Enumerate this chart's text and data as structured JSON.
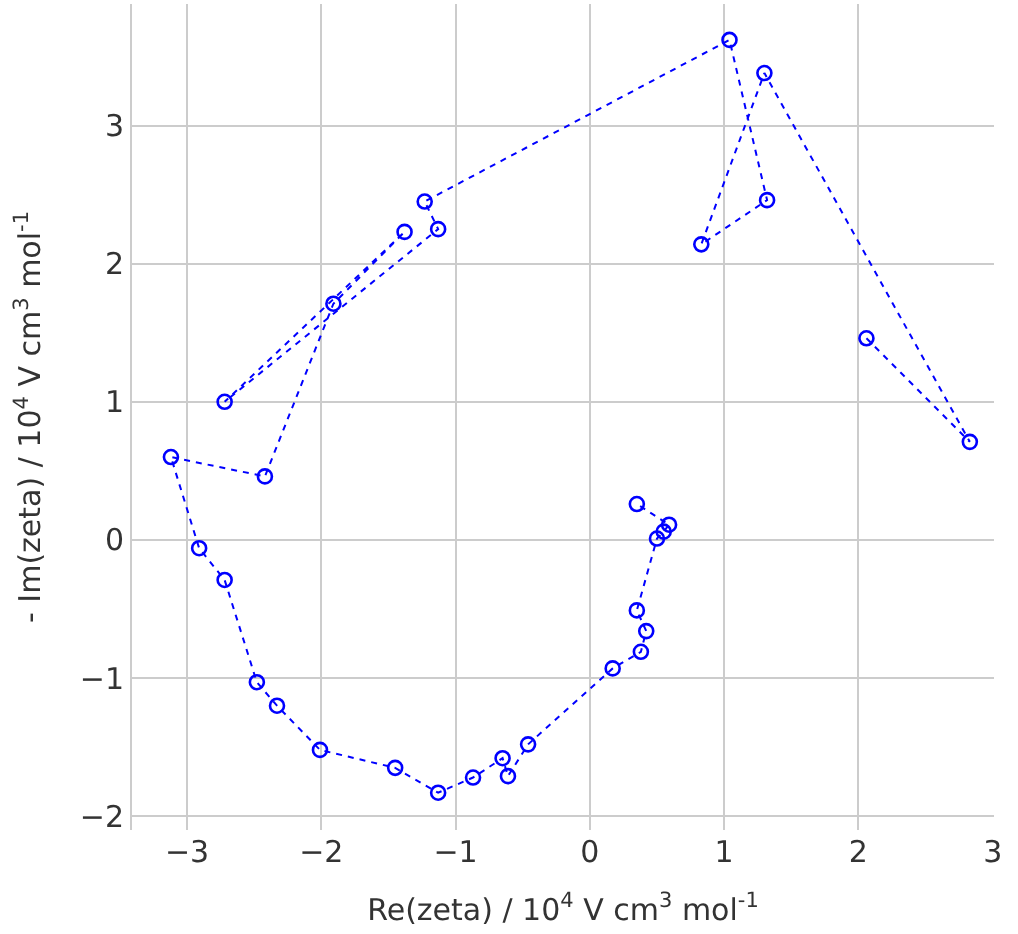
{
  "chart_data": {
    "type": "line",
    "xlabel": "Re(zeta) / 10$^{4}$ V cm$^{3}$ mol$^{-1}$",
    "ylabel": "- Im(zeta) / 10$^{4}$ V cm$^{3}$ mol$^{-1}$",
    "series": [
      {
        "color": "#0000ff",
        "x": [
          2.06,
          2.83,
          1.3,
          0.83,
          1.32,
          1.04,
          -1.23,
          -1.13,
          -2.72,
          -1.38,
          -1.91,
          -2.42,
          -3.12,
          -2.91,
          -2.72,
          -2.48,
          -2.33,
          -2.01,
          -1.45,
          -1.13,
          -0.87,
          -0.65,
          -0.61,
          -0.46,
          0.17,
          0.38,
          0.42,
          0.35,
          0.5,
          0.55,
          0.59,
          0.35
        ],
        "values": [
          1.46,
          0.71,
          3.38,
          2.14,
          2.46,
          3.62,
          2.45,
          2.25,
          1.0,
          2.23,
          1.71,
          0.46,
          0.6,
          -0.06,
          -0.29,
          -1.03,
          -1.2,
          -1.52,
          -1.65,
          -1.83,
          -1.72,
          -1.58,
          -1.71,
          -1.48,
          -0.93,
          -0.81,
          -0.66,
          -0.51,
          0.01,
          0.06,
          0.11,
          0.26
        ]
      }
    ],
    "xlim": [
      -3.41,
      3.01
    ],
    "ylim": [
      -2.1,
      3.88
    ],
    "xticks": [
      -3,
      -2,
      -1,
      0,
      1,
      2,
      3
    ],
    "yticks": [
      -2,
      -1,
      0,
      1,
      2,
      3
    ],
    "grid": true,
    "marker": "circle",
    "line_style": "dotted"
  }
}
